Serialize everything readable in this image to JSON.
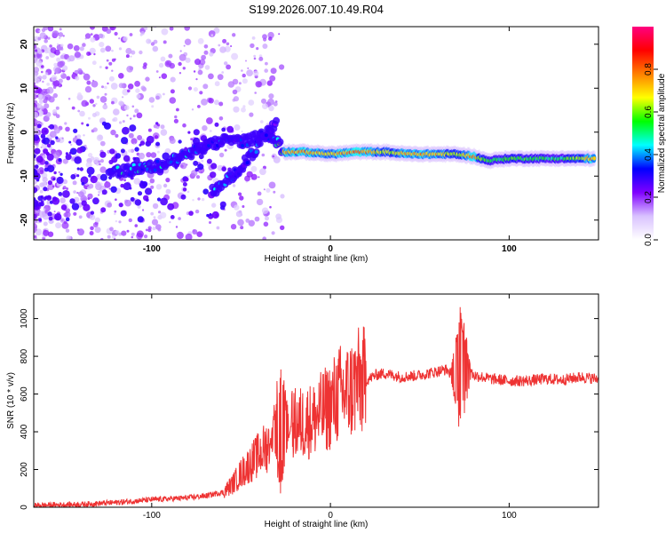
{
  "title": "S199.2026.007.10.49.R04",
  "chart_data": [
    {
      "type": "heatmap",
      "name": "spectrogram",
      "xlabel": "Height of straight line (km)",
      "ylabel": "Frequency (Hz)",
      "xlim": [
        -166,
        150
      ],
      "ylim": [
        -24.5,
        24
      ],
      "xticks": [
        -100,
        0,
        100
      ],
      "yticks": [
        -20,
        -10,
        0,
        10,
        20
      ],
      "colorbar": {
        "label": "Normalized spectral amplitude",
        "range": [
          0,
          1
        ],
        "ticks": [
          0.0,
          0.2,
          0.4,
          0.6,
          0.8
        ],
        "tick_labels": [
          "0.0",
          "0.2",
          "0.4",
          "0.6",
          "0.8"
        ],
        "colormap": [
          "#ffffff",
          "#d9c2ff",
          "#8000ff",
          "#0000ff",
          "#00ffff",
          "#00ff00",
          "#ffff00",
          "#ff8000",
          "#ff0000",
          "#ff0080"
        ]
      },
      "ridges": [
        {
          "name": "main-ridge",
          "x": [
            -124,
            -110,
            -95,
            -85,
            -75,
            -67,
            -60,
            -48,
            -40,
            -33,
            -26,
            -15,
            0,
            15,
            30,
            45,
            60,
            70,
            80,
            88,
            100,
            115,
            130,
            148
          ],
          "y": [
            -9,
            -8.5,
            -7.5,
            -6,
            -4,
            -3,
            -2,
            -2,
            -1,
            -0.5,
            -4.5,
            -4.5,
            -5,
            -4.5,
            -4.5,
            -5,
            -5,
            -5,
            -5.5,
            -6.5,
            -6,
            -6,
            -6,
            -6
          ],
          "amplitude": [
            0.4,
            0.45,
            0.4,
            0.45,
            0.35,
            0.3,
            0.35,
            0.3,
            0.35,
            0.3,
            0.75,
            0.8,
            0.75,
            0.85,
            0.65,
            0.8,
            0.75,
            0.65,
            0.8,
            0.55,
            0.6,
            0.55,
            0.55,
            0.8
          ]
        },
        {
          "name": "secondary-ridge",
          "x": [
            -66,
            -60,
            -54,
            -48,
            -42,
            -36,
            -30
          ],
          "y": [
            -13.5,
            -12,
            -9.5,
            -7,
            -4,
            -0.5,
            2
          ],
          "amplitude": [
            0.45,
            0.4,
            0.35,
            0.3,
            0.35,
            0.3,
            0.25
          ]
        }
      ]
    },
    {
      "type": "line",
      "name": "snr",
      "xlabel": "Height of straight line (km)",
      "ylabel": "SNR (10 * v/v)",
      "xlim": [
        -166,
        150
      ],
      "ylim": [
        0,
        1130
      ],
      "xticks": [
        -100,
        0,
        100
      ],
      "yticks": [
        0,
        200,
        400,
        600,
        800,
        1000
      ],
      "color": "#ee3333",
      "x": [
        -166,
        -140,
        -120,
        -100,
        -80,
        -70,
        -60,
        -55,
        -50,
        -45,
        -40,
        -35,
        -30,
        -25,
        -20,
        -15,
        -10,
        -5,
        0,
        5,
        10,
        15,
        20,
        25,
        30,
        40,
        50,
        60,
        65,
        68,
        70,
        72,
        74,
        76,
        78,
        80,
        85,
        90,
        100,
        110,
        120,
        130,
        140,
        150
      ],
      "y": [
        10,
        15,
        25,
        40,
        50,
        60,
        80,
        120,
        180,
        230,
        280,
        330,
        380,
        400,
        440,
        450,
        460,
        500,
        540,
        600,
        610,
        660,
        670,
        700,
        710,
        690,
        700,
        720,
        730,
        700,
        720,
        750,
        740,
        730,
        720,
        700,
        690,
        680,
        670,
        670,
        680,
        675,
        690,
        680
      ],
      "spikes": [
        {
          "x": 73,
          "max": 1110,
          "min": 330
        },
        {
          "x": -28,
          "max": 820,
          "min": 70
        }
      ]
    }
  ]
}
